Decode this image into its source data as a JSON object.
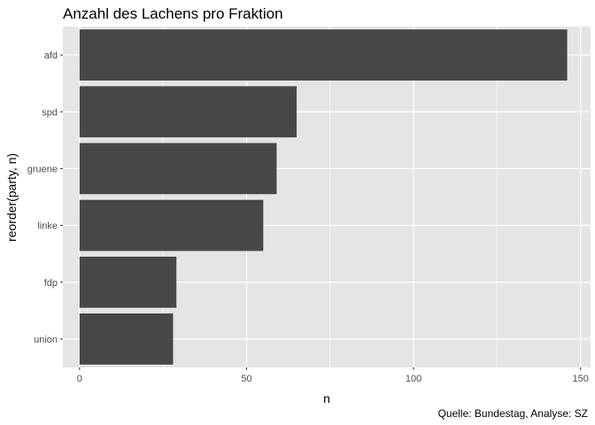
{
  "chart_data": {
    "type": "bar",
    "orientation": "horizontal",
    "title": "Anzahl des Lachens pro Fraktion",
    "xlabel": "n",
    "ylabel": "reorder(party, n)",
    "caption": "Quelle: Bundestag, Analyse: SZ",
    "categories": [
      "afd",
      "spd",
      "gruene",
      "linke",
      "fdp",
      "union"
    ],
    "values": [
      146,
      65,
      59,
      55,
      29,
      28
    ],
    "xlim": [
      -5,
      153
    ],
    "xticks": [
      0,
      50,
      100,
      150
    ],
    "xtick_labels": [
      "0",
      "50",
      "100",
      "150"
    ],
    "grid": true,
    "legend": "none",
    "bar_color": "#474747",
    "panel_background": "#e5e5e5",
    "gridline_color": "#ffffff"
  }
}
